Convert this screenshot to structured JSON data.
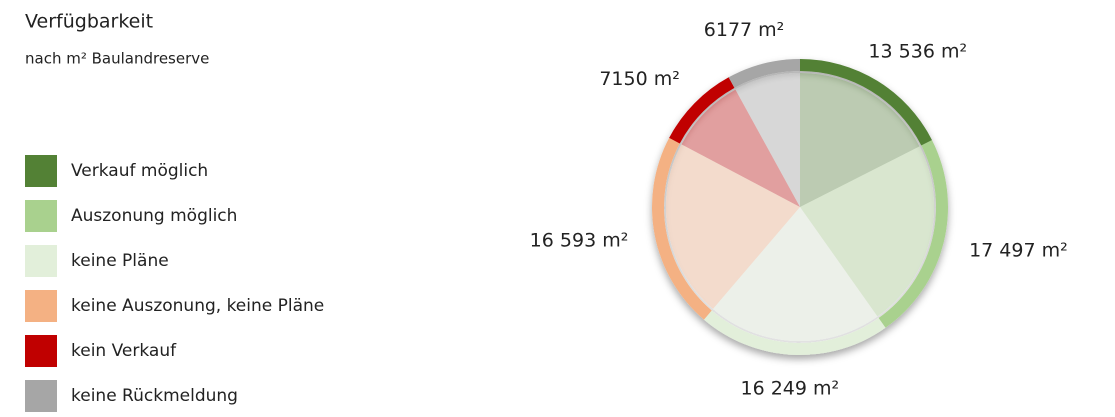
{
  "chart_data": {
    "type": "pie",
    "title": "Verfügbarkeit",
    "subtitle": "nach m² Baulandreserve",
    "categories": [
      "Verkauf möglich",
      "Auszonung möglich",
      "keine Pläne",
      "keine Auszonung, keine Pläne",
      "kein Verkauf",
      "keine Rückmeldung"
    ],
    "values": [
      13536,
      17497,
      16249,
      16593,
      7150,
      6177
    ],
    "value_labels": [
      "13 536 m²",
      "17 497 m²",
      "16 249 m²",
      "16 593 m²",
      "7150 m²",
      "6177 m²"
    ],
    "colors": [
      "#538135",
      "#a9d18e",
      "#e2efda",
      "#f4b183",
      "#c00000",
      "#a6a6a6"
    ],
    "legend": "left"
  }
}
